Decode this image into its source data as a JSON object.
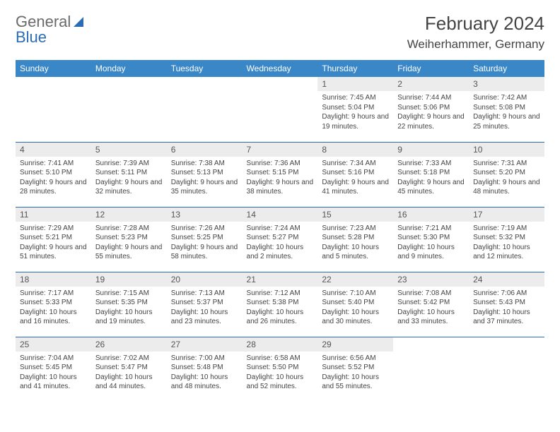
{
  "logo": {
    "part1": "General",
    "part2": "Blue"
  },
  "title": "February 2024",
  "location": "Weiherhammer, Germany",
  "colors": {
    "header_bg": "#3a87c8",
    "daynum_bg": "#ececec",
    "rule": "#2a6db5",
    "text": "#444444"
  },
  "weekdays": [
    "Sunday",
    "Monday",
    "Tuesday",
    "Wednesday",
    "Thursday",
    "Friday",
    "Saturday"
  ],
  "weeks": [
    [
      null,
      null,
      null,
      null,
      {
        "n": "1",
        "sunrise": "7:45 AM",
        "sunset": "5:04 PM",
        "daylight": "9 hours and 19 minutes."
      },
      {
        "n": "2",
        "sunrise": "7:44 AM",
        "sunset": "5:06 PM",
        "daylight": "9 hours and 22 minutes."
      },
      {
        "n": "3",
        "sunrise": "7:42 AM",
        "sunset": "5:08 PM",
        "daylight": "9 hours and 25 minutes."
      }
    ],
    [
      {
        "n": "4",
        "sunrise": "7:41 AM",
        "sunset": "5:10 PM",
        "daylight": "9 hours and 28 minutes."
      },
      {
        "n": "5",
        "sunrise": "7:39 AM",
        "sunset": "5:11 PM",
        "daylight": "9 hours and 32 minutes."
      },
      {
        "n": "6",
        "sunrise": "7:38 AM",
        "sunset": "5:13 PM",
        "daylight": "9 hours and 35 minutes."
      },
      {
        "n": "7",
        "sunrise": "7:36 AM",
        "sunset": "5:15 PM",
        "daylight": "9 hours and 38 minutes."
      },
      {
        "n": "8",
        "sunrise": "7:34 AM",
        "sunset": "5:16 PM",
        "daylight": "9 hours and 41 minutes."
      },
      {
        "n": "9",
        "sunrise": "7:33 AM",
        "sunset": "5:18 PM",
        "daylight": "9 hours and 45 minutes."
      },
      {
        "n": "10",
        "sunrise": "7:31 AM",
        "sunset": "5:20 PM",
        "daylight": "9 hours and 48 minutes."
      }
    ],
    [
      {
        "n": "11",
        "sunrise": "7:29 AM",
        "sunset": "5:21 PM",
        "daylight": "9 hours and 51 minutes."
      },
      {
        "n": "12",
        "sunrise": "7:28 AM",
        "sunset": "5:23 PM",
        "daylight": "9 hours and 55 minutes."
      },
      {
        "n": "13",
        "sunrise": "7:26 AM",
        "sunset": "5:25 PM",
        "daylight": "9 hours and 58 minutes."
      },
      {
        "n": "14",
        "sunrise": "7:24 AM",
        "sunset": "5:27 PM",
        "daylight": "10 hours and 2 minutes."
      },
      {
        "n": "15",
        "sunrise": "7:23 AM",
        "sunset": "5:28 PM",
        "daylight": "10 hours and 5 minutes."
      },
      {
        "n": "16",
        "sunrise": "7:21 AM",
        "sunset": "5:30 PM",
        "daylight": "10 hours and 9 minutes."
      },
      {
        "n": "17",
        "sunrise": "7:19 AM",
        "sunset": "5:32 PM",
        "daylight": "10 hours and 12 minutes."
      }
    ],
    [
      {
        "n": "18",
        "sunrise": "7:17 AM",
        "sunset": "5:33 PM",
        "daylight": "10 hours and 16 minutes."
      },
      {
        "n": "19",
        "sunrise": "7:15 AM",
        "sunset": "5:35 PM",
        "daylight": "10 hours and 19 minutes."
      },
      {
        "n": "20",
        "sunrise": "7:13 AM",
        "sunset": "5:37 PM",
        "daylight": "10 hours and 23 minutes."
      },
      {
        "n": "21",
        "sunrise": "7:12 AM",
        "sunset": "5:38 PM",
        "daylight": "10 hours and 26 minutes."
      },
      {
        "n": "22",
        "sunrise": "7:10 AM",
        "sunset": "5:40 PM",
        "daylight": "10 hours and 30 minutes."
      },
      {
        "n": "23",
        "sunrise": "7:08 AM",
        "sunset": "5:42 PM",
        "daylight": "10 hours and 33 minutes."
      },
      {
        "n": "24",
        "sunrise": "7:06 AM",
        "sunset": "5:43 PM",
        "daylight": "10 hours and 37 minutes."
      }
    ],
    [
      {
        "n": "25",
        "sunrise": "7:04 AM",
        "sunset": "5:45 PM",
        "daylight": "10 hours and 41 minutes."
      },
      {
        "n": "26",
        "sunrise": "7:02 AM",
        "sunset": "5:47 PM",
        "daylight": "10 hours and 44 minutes."
      },
      {
        "n": "27",
        "sunrise": "7:00 AM",
        "sunset": "5:48 PM",
        "daylight": "10 hours and 48 minutes."
      },
      {
        "n": "28",
        "sunrise": "6:58 AM",
        "sunset": "5:50 PM",
        "daylight": "10 hours and 52 minutes."
      },
      {
        "n": "29",
        "sunrise": "6:56 AM",
        "sunset": "5:52 PM",
        "daylight": "10 hours and 55 minutes."
      },
      null,
      null
    ]
  ],
  "labels": {
    "sunrise": "Sunrise:",
    "sunset": "Sunset:",
    "daylight": "Daylight:"
  }
}
